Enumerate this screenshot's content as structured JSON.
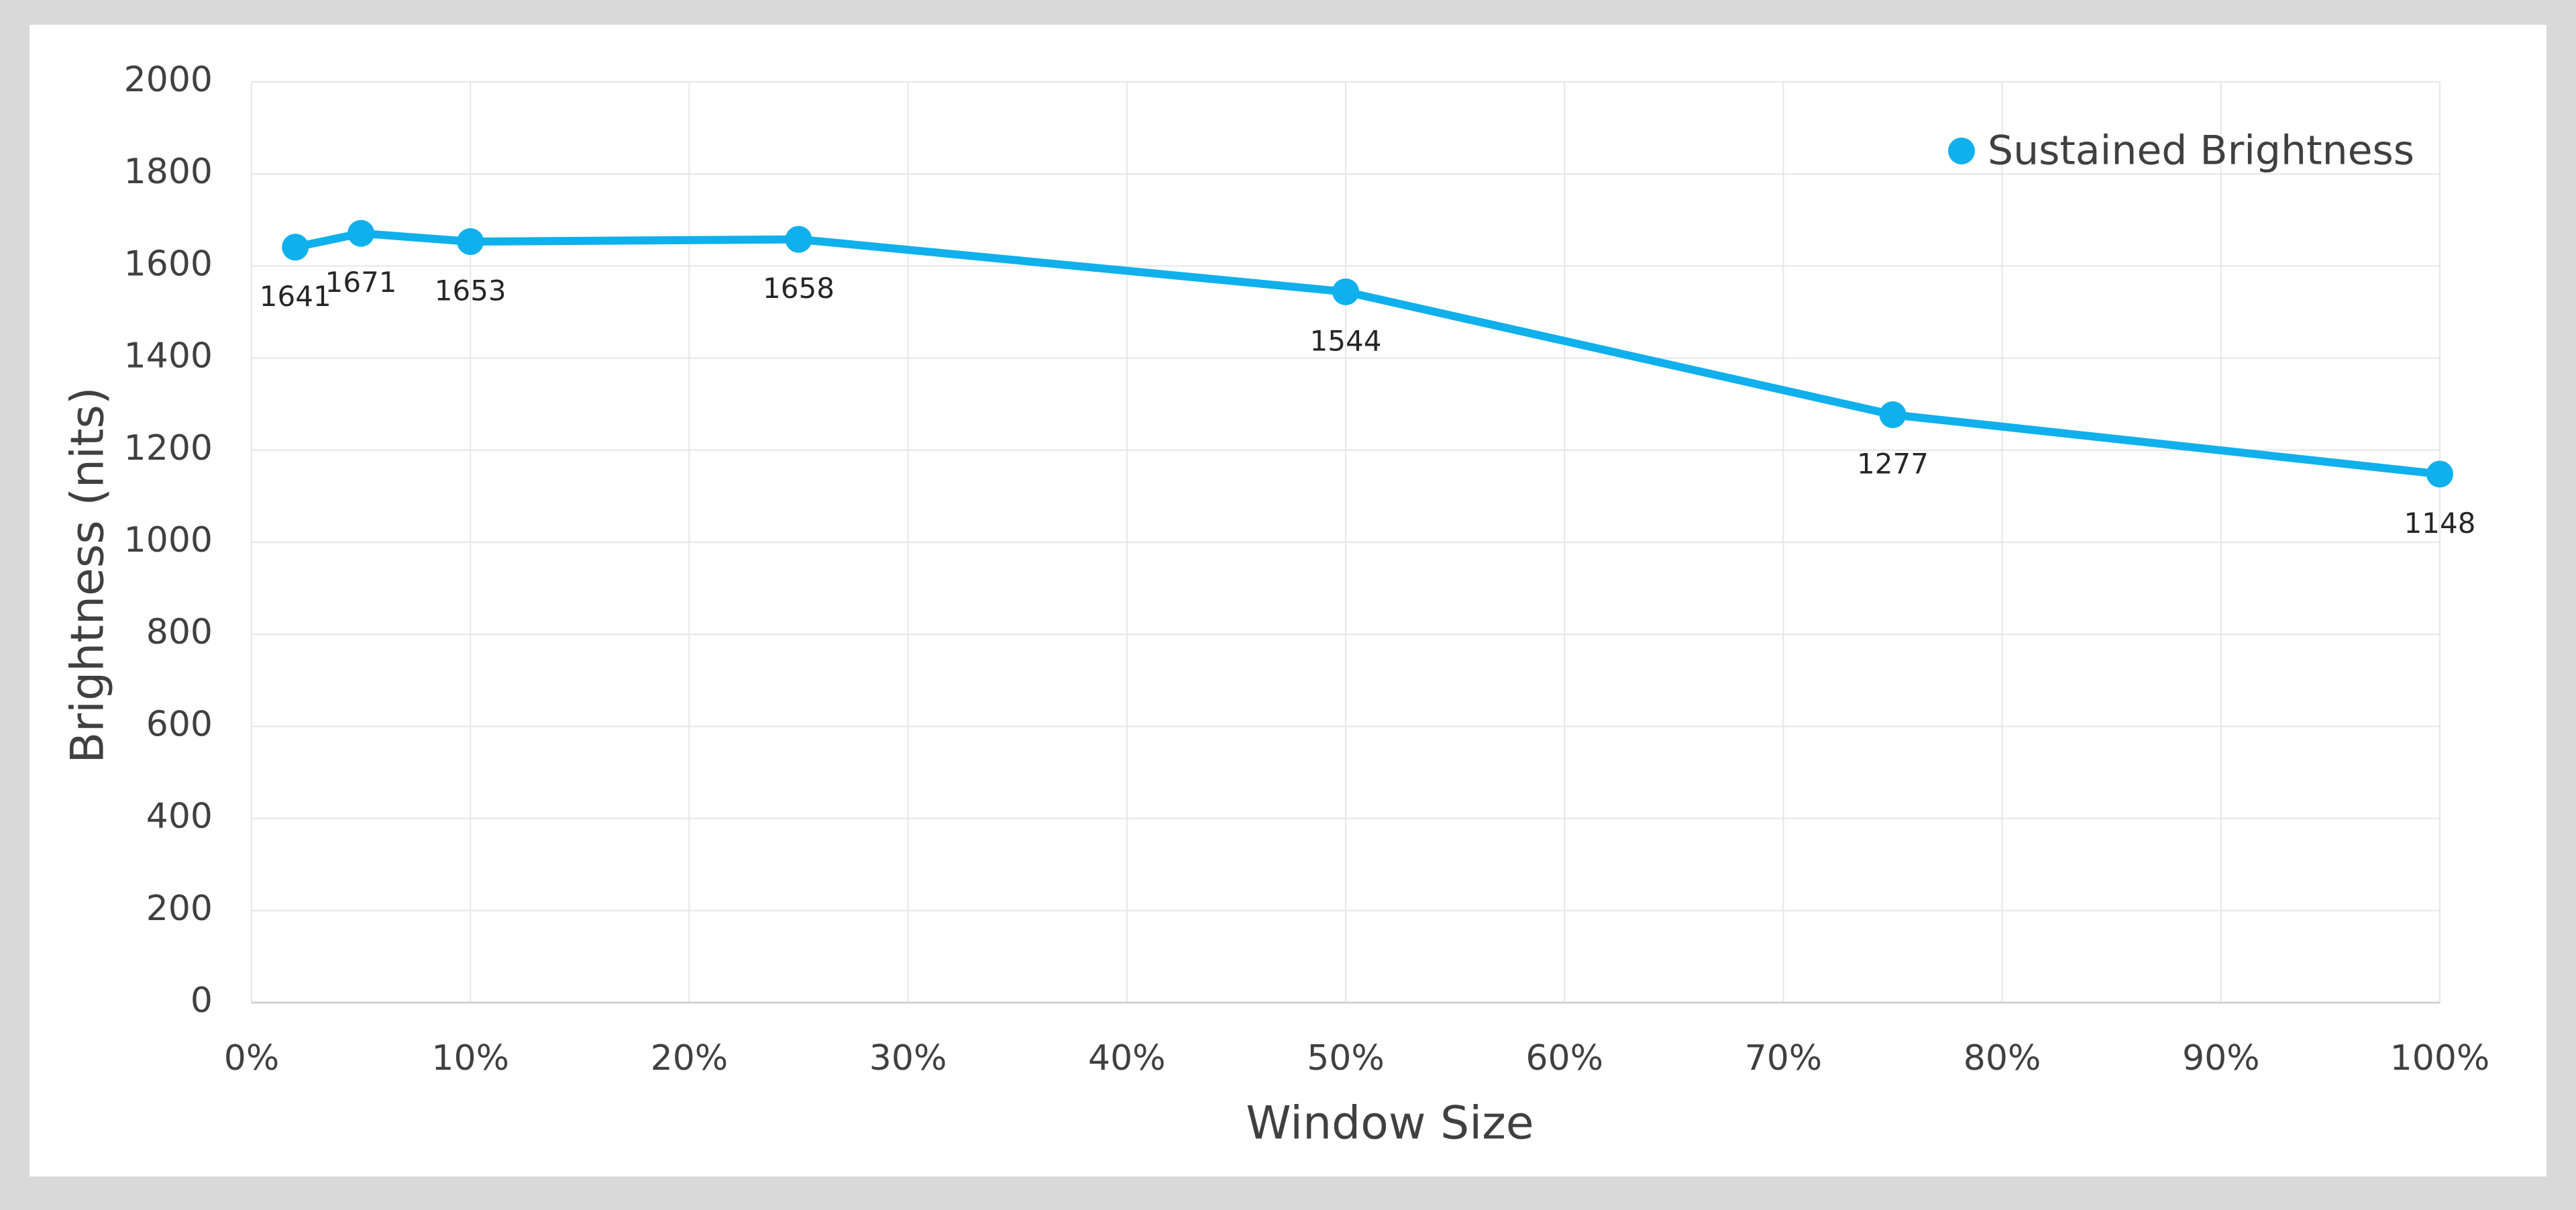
{
  "chart_data": {
    "type": "line",
    "x_label": "Window Size",
    "y_label": "Brightness (nits)",
    "x": [
      2,
      5,
      10,
      25,
      50,
      75,
      100
    ],
    "series": [
      {
        "name": "Sustained Brightness",
        "color": "#0fb0ec",
        "values": [
          1641,
          1671,
          1653,
          1658,
          1544,
          1277,
          1148
        ]
      }
    ],
    "xlim": [
      0,
      100
    ],
    "xticks": [
      {
        "value": 0,
        "label": "0%"
      },
      {
        "value": 10,
        "label": "10%"
      },
      {
        "value": 20,
        "label": "20%"
      },
      {
        "value": 30,
        "label": "30%"
      },
      {
        "value": 40,
        "label": "40%"
      },
      {
        "value": 50,
        "label": "50%"
      },
      {
        "value": 60,
        "label": "60%"
      },
      {
        "value": 70,
        "label": "70%"
      },
      {
        "value": 80,
        "label": "80%"
      },
      {
        "value": 90,
        "label": "90%"
      },
      {
        "value": 100,
        "label": "100%"
      }
    ],
    "ylim": [
      0,
      2000
    ],
    "yticks": [
      0,
      200,
      400,
      600,
      800,
      1000,
      1200,
      1400,
      1600,
      1800,
      2000
    ],
    "grid": true,
    "data_labels": true,
    "legend": "top-right"
  }
}
